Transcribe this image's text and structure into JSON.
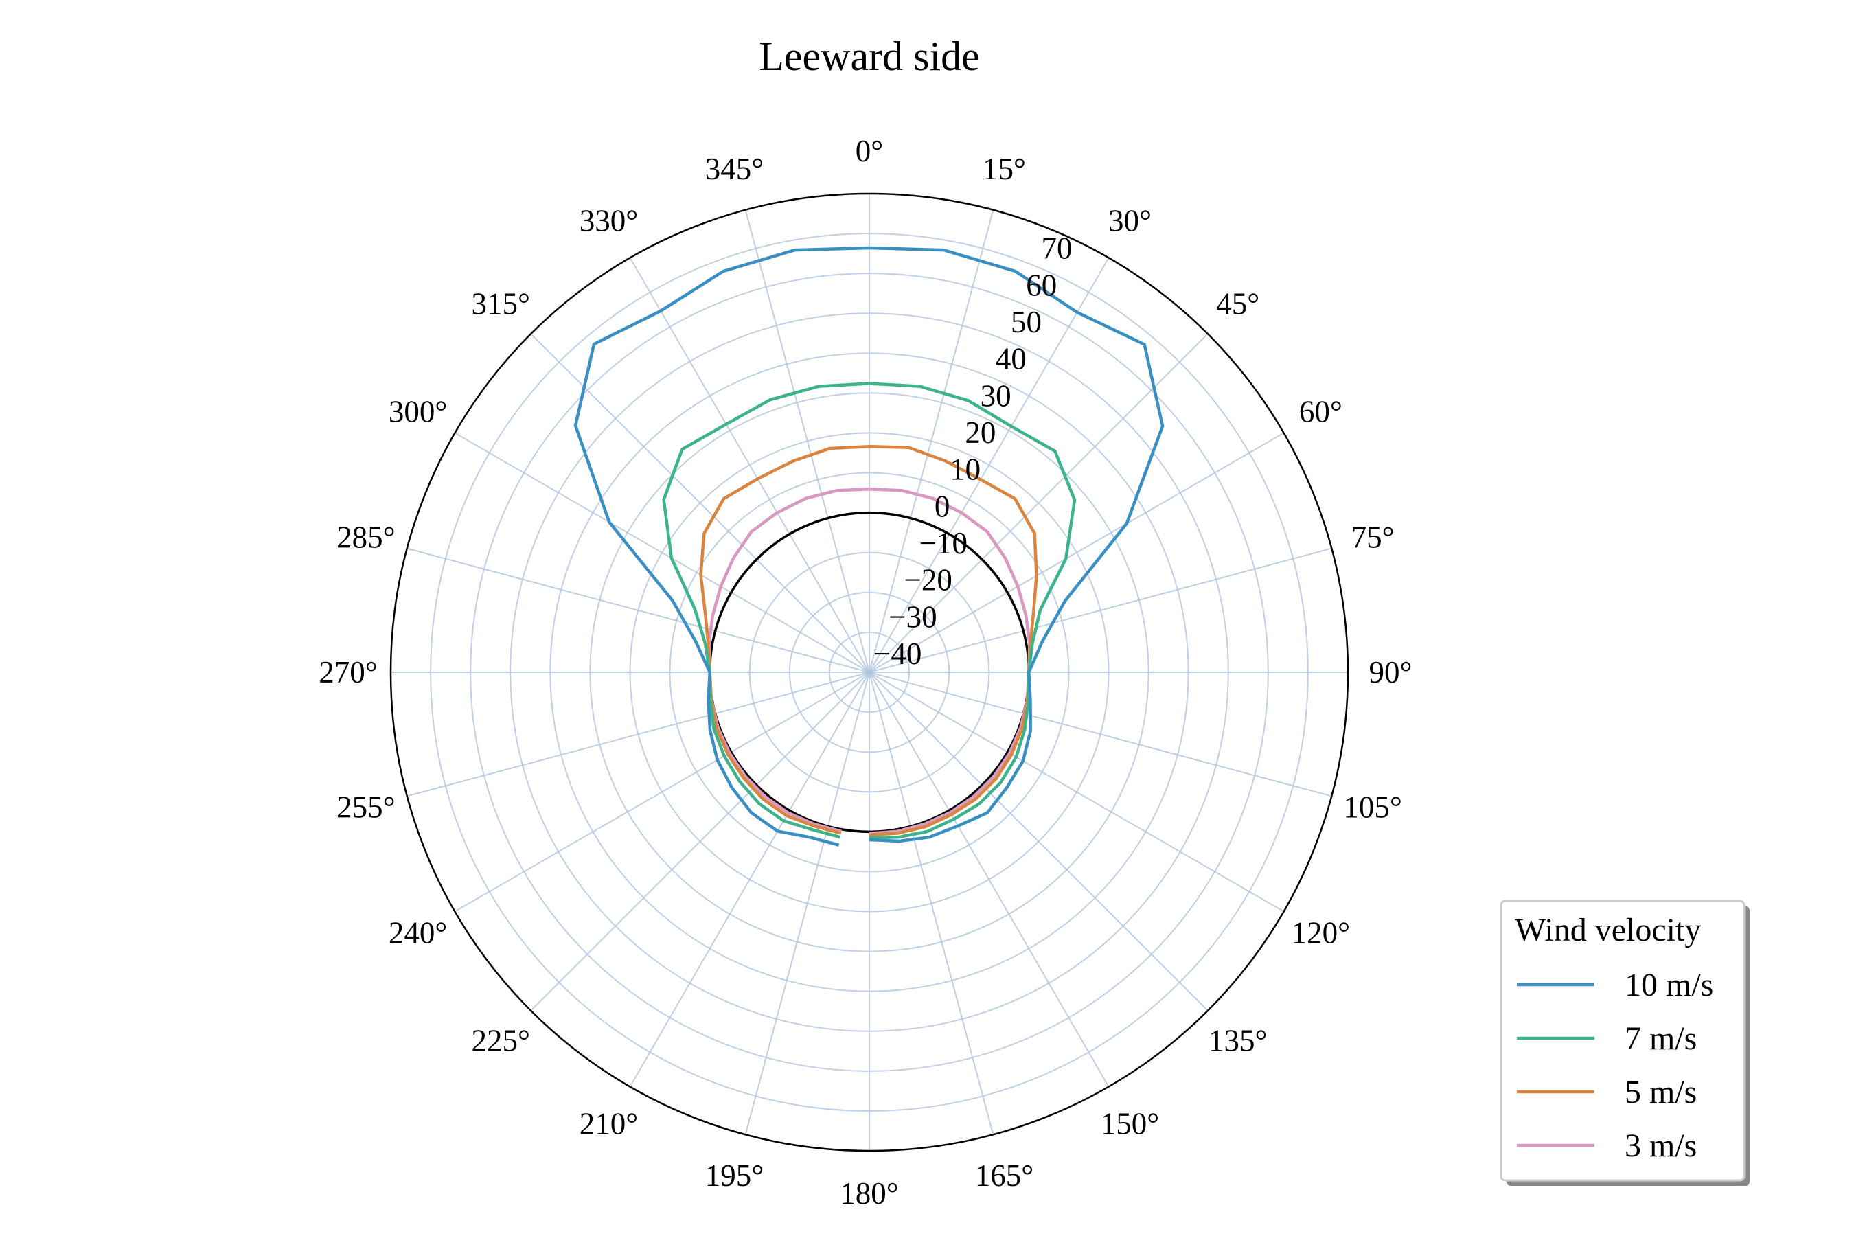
{
  "chart_data": {
    "type": "line",
    "projection": "polar",
    "title": "Leeward side",
    "theta_direction": "clockwise",
    "theta_zero": "top",
    "theta_ticks": [
      "0°",
      "15°",
      "30°",
      "45°",
      "60°",
      "75°",
      "90°",
      "105°",
      "120°",
      "135°",
      "150°",
      "165°",
      "180°",
      "195°",
      "210°",
      "225°",
      "240°",
      "255°",
      "270°",
      "285°",
      "300°",
      "315°",
      "330°",
      "345°"
    ],
    "theta_tick_values": [
      0,
      15,
      30,
      45,
      60,
      75,
      90,
      105,
      120,
      135,
      150,
      165,
      180,
      195,
      210,
      225,
      240,
      255,
      270,
      285,
      300,
      315,
      330,
      345
    ],
    "r_ticks": [
      "−40",
      "−30",
      "−20",
      "−10",
      "0",
      "10",
      "20",
      "30",
      "40",
      "50",
      "60",
      "70"
    ],
    "r_tick_values": [
      -40,
      -30,
      -20,
      -10,
      0,
      10,
      20,
      30,
      40,
      50,
      60,
      70
    ],
    "rlim": [
      -40,
      80
    ],
    "reference_circle": 0,
    "grid": true,
    "gap_between_degrees": [
      180,
      190
    ],
    "angles": [
      0,
      10,
      20,
      30,
      40,
      50,
      60,
      70,
      80,
      90,
      100,
      110,
      120,
      130,
      140,
      150,
      160,
      170,
      180,
      190,
      200,
      210,
      220,
      230,
      240,
      250,
      260,
      270,
      280,
      290,
      300,
      310,
      320,
      330,
      340,
      350
    ],
    "series": [
      {
        "name": "10 m/s",
        "color": "#3a8fc2",
        "values": [
          66.4,
          67.5,
          67,
          64.2,
          67.3,
          56,
          34.5,
          12.2,
          4,
          0,
          1,
          3,
          4.5,
          5,
          6,
          4.5,
          4,
          3,
          2,
          4,
          4,
          6,
          6,
          5,
          4,
          2.5,
          1,
          0,
          4.2,
          12.5,
          35.3,
          56.2,
          67.4,
          64.6,
          67,
          67.5
        ]
      },
      {
        "name": "7 m/s",
        "color": "#3db38b",
        "values": [
          32.4,
          32.8,
          32.5,
          31.2,
          32.4,
          27.2,
          16.9,
          5.6,
          1.5,
          0,
          0.5,
          1.5,
          2.5,
          3,
          3,
          2.5,
          2.5,
          2,
          1.5,
          2,
          2,
          3,
          3,
          2.5,
          2,
          1.5,
          0.5,
          0,
          1.8,
          6.6,
          17.3,
          27.3,
          33,
          31.8,
          32.7,
          32.8
        ]
      },
      {
        "name": "5 m/s",
        "color": "#d9843f",
        "values": [
          16.6,
          17.2,
          16.3,
          15.8,
          16.8,
          14.1,
          8.4,
          3.8,
          1,
          0,
          0.3,
          0.8,
          1.2,
          1.5,
          1.5,
          1.2,
          1.2,
          1,
          0.8,
          1,
          1,
          1.5,
          1.5,
          1.2,
          1,
          0.8,
          0.3,
          0,
          1,
          3.8,
          8.8,
          14.1,
          16.8,
          16,
          16.3,
          17
        ]
      },
      {
        "name": "3 m/s",
        "color": "#d898c0",
        "values": [
          5.9,
          6.3,
          6.4,
          6.2,
          6,
          4.5,
          3,
          1.8,
          0.8,
          0,
          0.2,
          0.4,
          0.6,
          0.7,
          0.7,
          0.6,
          0.5,
          0.5,
          0.4,
          0.5,
          0.5,
          0.7,
          0.7,
          0.6,
          0.5,
          0.4,
          0.2,
          0,
          0.8,
          1.8,
          3,
          4.5,
          6,
          6.2,
          6.4,
          6.3
        ]
      }
    ],
    "legend": {
      "title": "Wind velocity",
      "placement": "lower-right"
    }
  }
}
